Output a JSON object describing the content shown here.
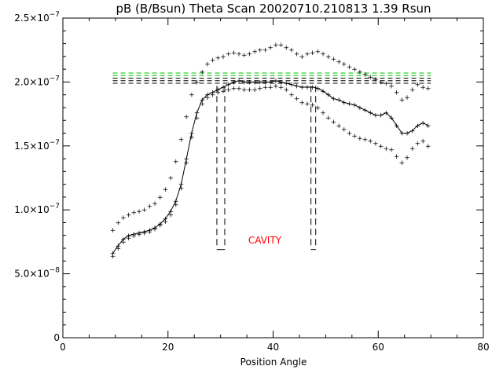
{
  "chart_data": {
    "type": "scatter",
    "title": "pB (B/Bsun) Theta Scan 20020710.210813 1.39 Rsun",
    "xlabel": "Position Angle",
    "ylabel": "",
    "xlim": [
      0,
      80
    ],
    "ylim": [
      0,
      2.5e-07
    ],
    "x_ticks": [
      0,
      20,
      40,
      60,
      80
    ],
    "x_tick_labels": [
      "0",
      "20",
      "40",
      "60",
      "80"
    ],
    "y_ticks": [
      0,
      5e-08,
      1e-07,
      1.5e-07,
      2e-07,
      2.5e-07
    ],
    "y_tick_labels": [
      {
        "mant": "0",
        "exp": ""
      },
      {
        "mant": "5.0×10",
        "exp": "−8"
      },
      {
        "mant": "1.0×10",
        "exp": "−7"
      },
      {
        "mant": "1.5×10",
        "exp": "−7"
      },
      {
        "mant": "2.0×10",
        "exp": "−7"
      },
      {
        "mant": "2.5×10",
        "exp": "−7"
      }
    ],
    "annotation": "CAVITY",
    "grid": false,
    "series": [
      {
        "role": "upper",
        "style": "points",
        "points": [
          [
            9.5,
            8.4e-08
          ],
          [
            10.5,
            9e-08
          ],
          [
            11.5,
            9.4e-08
          ],
          [
            12.5,
            9.6e-08
          ],
          [
            13.5,
            9.8e-08
          ],
          [
            14.5,
            9.9e-08
          ],
          [
            15.5,
            1e-07
          ],
          [
            16.5,
            1.03e-07
          ],
          [
            17.5,
            1.05e-07
          ],
          [
            18.5,
            1.1e-07
          ],
          [
            19.5,
            1.16e-07
          ],
          [
            20.5,
            1.25e-07
          ],
          [
            21.5,
            1.38e-07
          ],
          [
            22.5,
            1.55e-07
          ],
          [
            23.5,
            1.73e-07
          ],
          [
            24.5,
            1.9e-07
          ],
          [
            25.5,
            2e-07
          ],
          [
            26.5,
            2.08e-07
          ],
          [
            27.5,
            2.14e-07
          ],
          [
            28.5,
            2.17e-07
          ],
          [
            29.5,
            2.19e-07
          ],
          [
            30.5,
            2.2e-07
          ],
          [
            31.5,
            2.22e-07
          ],
          [
            32.5,
            2.23e-07
          ],
          [
            33.5,
            2.22e-07
          ],
          [
            34.5,
            2.21e-07
          ],
          [
            35.5,
            2.22e-07
          ],
          [
            36.5,
            2.24e-07
          ],
          [
            37.5,
            2.25e-07
          ],
          [
            38.5,
            2.25e-07
          ],
          [
            39.5,
            2.27e-07
          ],
          [
            40.5,
            2.29e-07
          ],
          [
            41.5,
            2.29e-07
          ],
          [
            42.5,
            2.27e-07
          ],
          [
            43.5,
            2.25e-07
          ],
          [
            44.5,
            2.22e-07
          ],
          [
            45.5,
            2.2e-07
          ],
          [
            46.5,
            2.22e-07
          ],
          [
            47.5,
            2.23e-07
          ],
          [
            48.5,
            2.24e-07
          ],
          [
            49.5,
            2.22e-07
          ],
          [
            50.5,
            2.2e-07
          ],
          [
            51.5,
            2.18e-07
          ],
          [
            52.5,
            2.16e-07
          ],
          [
            53.5,
            2.14e-07
          ],
          [
            54.5,
            2.12e-07
          ],
          [
            55.5,
            2.1e-07
          ],
          [
            56.5,
            2.08e-07
          ],
          [
            57.5,
            2.06e-07
          ],
          [
            58.5,
            2.04e-07
          ],
          [
            59.5,
            2.02e-07
          ],
          [
            60.5,
            2e-07
          ],
          [
            61.5,
            1.99e-07
          ],
          [
            62.5,
            1.97e-07
          ],
          [
            63.5,
            1.92e-07
          ],
          [
            64.5,
            1.86e-07
          ],
          [
            65.5,
            1.88e-07
          ],
          [
            66.5,
            1.94e-07
          ],
          [
            67.5,
            1.98e-07
          ],
          [
            68.5,
            1.96e-07
          ],
          [
            69.5,
            1.95e-07
          ]
        ]
      },
      {
        "role": "middle",
        "style": "points-and-line",
        "points": [
          [
            9.5,
            6.6e-08
          ],
          [
            10.5,
            7.2e-08
          ],
          [
            11.5,
            7.7e-08
          ],
          [
            12.5,
            8e-08
          ],
          [
            13.5,
            8.1e-08
          ],
          [
            14.5,
            8.2e-08
          ],
          [
            15.5,
            8.3e-08
          ],
          [
            16.5,
            8.4e-08
          ],
          [
            17.5,
            8.6e-08
          ],
          [
            18.5,
            8.9e-08
          ],
          [
            19.5,
            9.3e-08
          ],
          [
            20.5,
            9.9e-08
          ],
          [
            21.5,
            1.07e-07
          ],
          [
            22.5,
            1.2e-07
          ],
          [
            23.5,
            1.4e-07
          ],
          [
            24.5,
            1.6e-07
          ],
          [
            25.5,
            1.76e-07
          ],
          [
            26.5,
            1.86e-07
          ],
          [
            27.5,
            1.9e-07
          ],
          [
            28.5,
            1.92e-07
          ],
          [
            29.5,
            1.94e-07
          ],
          [
            30.5,
            1.96e-07
          ],
          [
            31.5,
            1.98e-07
          ],
          [
            32.5,
            2e-07
          ],
          [
            33.5,
            2.01e-07
          ],
          [
            34.5,
            2e-07
          ],
          [
            35.5,
            2e-07
          ],
          [
            36.5,
            2e-07
          ],
          [
            37.5,
            2e-07
          ],
          [
            38.5,
            2e-07
          ],
          [
            39.5,
            2e-07
          ],
          [
            40.5,
            2.01e-07
          ],
          [
            41.5,
            2e-07
          ],
          [
            42.5,
            1.99e-07
          ],
          [
            43.5,
            1.98e-07
          ],
          [
            44.5,
            1.97e-07
          ],
          [
            45.5,
            1.96e-07
          ],
          [
            46.5,
            1.96e-07
          ],
          [
            47.5,
            1.96e-07
          ],
          [
            48.5,
            1.95e-07
          ],
          [
            49.5,
            1.93e-07
          ],
          [
            50.5,
            1.9e-07
          ],
          [
            51.5,
            1.87e-07
          ],
          [
            52.5,
            1.86e-07
          ],
          [
            53.5,
            1.84e-07
          ],
          [
            54.5,
            1.83e-07
          ],
          [
            55.5,
            1.82e-07
          ],
          [
            56.5,
            1.8e-07
          ],
          [
            57.5,
            1.78e-07
          ],
          [
            58.5,
            1.76e-07
          ],
          [
            59.5,
            1.74e-07
          ],
          [
            60.5,
            1.74e-07
          ],
          [
            61.5,
            1.76e-07
          ],
          [
            62.5,
            1.72e-07
          ],
          [
            63.5,
            1.66e-07
          ],
          [
            64.5,
            1.6e-07
          ],
          [
            65.5,
            1.6e-07
          ],
          [
            66.5,
            1.62e-07
          ],
          [
            67.5,
            1.66e-07
          ],
          [
            68.5,
            1.68e-07
          ],
          [
            69.5,
            1.66e-07
          ]
        ]
      },
      {
        "role": "lower",
        "style": "points",
        "points": [
          [
            9.5,
            6.4e-08
          ],
          [
            10.5,
            7e-08
          ],
          [
            11.5,
            7.5e-08
          ],
          [
            12.5,
            7.8e-08
          ],
          [
            13.5,
            8e-08
          ],
          [
            14.5,
            8.1e-08
          ],
          [
            15.5,
            8.2e-08
          ],
          [
            16.5,
            8.3e-08
          ],
          [
            17.5,
            8.5e-08
          ],
          [
            18.5,
            8.8e-08
          ],
          [
            19.5,
            9.1e-08
          ],
          [
            20.5,
            9.6e-08
          ],
          [
            21.5,
            1.04e-07
          ],
          [
            22.5,
            1.17e-07
          ],
          [
            23.5,
            1.37e-07
          ],
          [
            24.5,
            1.57e-07
          ],
          [
            25.5,
            1.72e-07
          ],
          [
            26.5,
            1.83e-07
          ],
          [
            27.5,
            1.88e-07
          ],
          [
            28.5,
            1.9e-07
          ],
          [
            29.5,
            1.92e-07
          ],
          [
            30.5,
            1.93e-07
          ],
          [
            31.5,
            1.94e-07
          ],
          [
            32.5,
            1.95e-07
          ],
          [
            33.5,
            1.95e-07
          ],
          [
            34.5,
            1.94e-07
          ],
          [
            35.5,
            1.94e-07
          ],
          [
            36.5,
            1.94e-07
          ],
          [
            37.5,
            1.95e-07
          ],
          [
            38.5,
            1.96e-07
          ],
          [
            39.5,
            1.96e-07
          ],
          [
            40.5,
            1.97e-07
          ],
          [
            41.5,
            1.96e-07
          ],
          [
            42.5,
            1.94e-07
          ],
          [
            43.5,
            1.9e-07
          ],
          [
            44.5,
            1.87e-07
          ],
          [
            45.5,
            1.84e-07
          ],
          [
            46.5,
            1.83e-07
          ],
          [
            47.5,
            1.82e-07
          ],
          [
            48.5,
            1.8e-07
          ],
          [
            49.5,
            1.76e-07
          ],
          [
            50.5,
            1.72e-07
          ],
          [
            51.5,
            1.69e-07
          ],
          [
            52.5,
            1.66e-07
          ],
          [
            53.5,
            1.63e-07
          ],
          [
            54.5,
            1.6e-07
          ],
          [
            55.5,
            1.58e-07
          ],
          [
            56.5,
            1.56e-07
          ],
          [
            57.5,
            1.55e-07
          ],
          [
            58.5,
            1.54e-07
          ],
          [
            59.5,
            1.52e-07
          ],
          [
            60.5,
            1.5e-07
          ],
          [
            61.5,
            1.48e-07
          ],
          [
            62.5,
            1.47e-07
          ],
          [
            63.5,
            1.42e-07
          ],
          [
            64.5,
            1.37e-07
          ],
          [
            65.5,
            1.41e-07
          ],
          [
            66.5,
            1.48e-07
          ],
          [
            67.5,
            1.52e-07
          ],
          [
            68.5,
            1.54e-07
          ],
          [
            69.5,
            1.5e-07
          ]
        ]
      }
    ],
    "reference_lines": [
      {
        "y": 2.07e-07,
        "x": [
          9.5,
          70
        ],
        "color": "#00c000",
        "dash": true
      },
      {
        "y": 2.05e-07,
        "x": [
          9.5,
          70
        ],
        "color": "#00c000",
        "dash": true
      },
      {
        "y": 2.03e-07,
        "x": [
          9.5,
          70
        ],
        "color": "#000000",
        "dash": true
      },
      {
        "y": 2.01e-07,
        "x": [
          9.5,
          70
        ],
        "color": "#000000",
        "dash": true
      },
      {
        "y": 1.99e-07,
        "x": [
          9.5,
          70
        ],
        "color": "#000000",
        "dash": true
      }
    ],
    "cavity_boundaries": [
      {
        "x": [
          29.3,
          30.8
        ],
        "y": [
          6.9e-08,
          1.97e-07
        ]
      },
      {
        "x": [
          47.2,
          48.1
        ],
        "y": [
          6.9e-08,
          1.97e-07
        ]
      }
    ],
    "colors": {
      "axes": "#000000",
      "annotation": "#ff0000",
      "background": "#ffffff"
    }
  }
}
